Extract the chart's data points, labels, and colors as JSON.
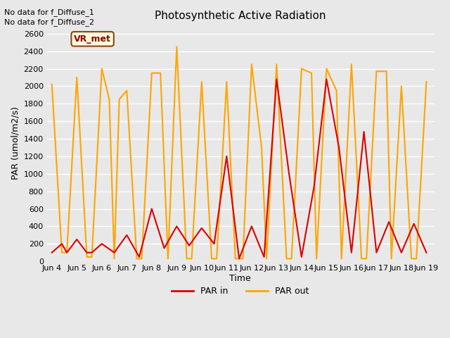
{
  "title": "Photosynthetic Active Radiation",
  "ylabel": "PAR (umol/m2/s)",
  "xlabel": "Time",
  "text_no_data_1": "No data for f_Diffuse_1",
  "text_no_data_2": "No data for f_Diffuse_2",
  "vr_met_label": "VR_met",
  "ylim": [
    0,
    2700
  ],
  "bg_color": "#e8e8e8",
  "par_in_color": "#dd0000",
  "par_out_color": "#ffa500",
  "legend_entries": [
    "PAR in",
    "PAR out"
  ],
  "x_tick_labels": [
    "Jun 4",
    "Jun 5",
    "Jun 6",
    "Jun 7",
    "Jun 8",
    "Jun 9",
    "Jun 10",
    "Jun 11",
    "Jun 12",
    "Jun 13",
    "Jun 14",
    "Jun 15",
    "Jun 16",
    "Jun 17",
    "Jun 18",
    "Jun 19"
  ],
  "par_out_x": [
    0,
    0.4,
    0.6,
    1,
    1.4,
    1.6,
    2,
    2.3,
    2.5,
    2.7,
    3,
    3.4,
    3.6,
    4,
    4.35,
    4.65,
    5,
    5.4,
    5.6,
    6,
    6.4,
    6.6,
    7,
    7.35,
    7.65,
    8,
    8.4,
    8.6,
    9,
    9.4,
    9.6,
    10,
    10.4,
    10.6,
    11,
    11.4,
    11.6,
    12,
    12.4,
    12.6,
    13,
    13.4,
    13.6,
    14,
    14.4,
    14.6,
    15
  ],
  "par_out_y": [
    2020,
    100,
    100,
    2100,
    50,
    50,
    2200,
    1850,
    30,
    1850,
    1950,
    30,
    30,
    2150,
    2150,
    30,
    2450,
    30,
    30,
    2050,
    30,
    30,
    2050,
    30,
    30,
    2250,
    1300,
    30,
    2250,
    30,
    30,
    2200,
    2150,
    30,
    2200,
    1950,
    30,
    2250,
    30,
    30,
    2170,
    2170,
    30,
    2000,
    30,
    30,
    2050
  ],
  "par_in_x": [
    0,
    0.4,
    0.6,
    1,
    1.4,
    1.6,
    2,
    2.5,
    3,
    3.5,
    4,
    4.5,
    5,
    5.5,
    6,
    6.5,
    7,
    7.5,
    8,
    8.5,
    9,
    9.5,
    10,
    10.5,
    11,
    11.5,
    12,
    12.5,
    13,
    13.5,
    14,
    14.5,
    15
  ],
  "par_in_y": [
    100,
    200,
    100,
    250,
    100,
    100,
    200,
    100,
    300,
    50,
    600,
    150,
    400,
    180,
    380,
    200,
    1200,
    30,
    400,
    50,
    2080,
    1000,
    50,
    850,
    2080,
    1300,
    100,
    1480,
    100,
    450,
    100,
    430,
    100
  ],
  "figsize": [
    6.4,
    4.8
  ],
  "dpi": 100
}
